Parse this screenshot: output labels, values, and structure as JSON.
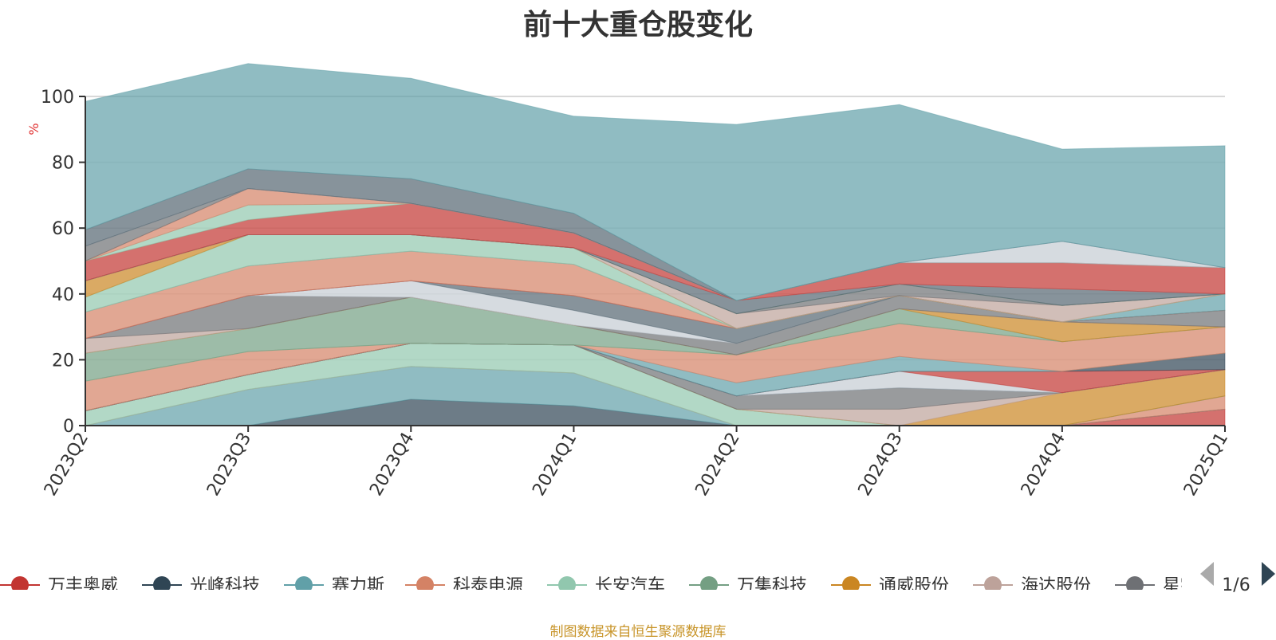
{
  "title": "前十大重仓股变化",
  "source_note": "制图数据来自恒生聚源数据库",
  "legend_page": "1/6",
  "chart_data": {
    "type": "area",
    "title": "前十大重仓股变化",
    "ylabel": "%",
    "ylim": [
      0,
      100
    ],
    "yticks": [
      0,
      20,
      40,
      60,
      80,
      100
    ],
    "grid": true,
    "legend_position": "bottom",
    "categories": [
      "2023Q2",
      "2023Q3",
      "2023Q4",
      "2024Q1",
      "2024Q2",
      "2024Q3",
      "2024Q4",
      "2025Q1"
    ],
    "series": [
      {
        "name": "万丰奥威",
        "color": "#c23531",
        "values": [
          0,
          0,
          0,
          0,
          0,
          0,
          0,
          5
        ]
      },
      {
        "name": "光峰科技",
        "color": "#2f4554",
        "values": [
          0,
          0,
          8,
          6,
          0,
          0,
          0,
          0
        ]
      },
      {
        "name": "赛力斯",
        "color": "#61a0a8",
        "values": [
          0,
          11,
          10,
          10,
          0,
          0,
          0,
          0
        ]
      },
      {
        "name": "科泰电源",
        "color": "#d48265",
        "values": [
          0,
          0,
          0,
          0,
          0,
          0,
          0,
          4
        ]
      },
      {
        "name": "长安汽车",
        "color": "#91c7ae",
        "values": [
          4.5,
          4.5,
          7,
          8.5,
          5,
          0,
          0,
          0
        ]
      },
      {
        "name": "万集科技",
        "color": "#749f83",
        "values": [
          0,
          0,
          0,
          0,
          0,
          0,
          0,
          0
        ]
      },
      {
        "name": "通威股份",
        "color": "#ca8622",
        "values": [
          0,
          0,
          0,
          0,
          0,
          0,
          10,
          8
        ]
      },
      {
        "name": "海达股份",
        "color": "#bda29a",
        "values": [
          0,
          0,
          0,
          0,
          0,
          5,
          0,
          0
        ]
      },
      {
        "name": "星宇股份",
        "color": "#6e7074",
        "values": [
          0,
          0,
          0,
          0,
          4,
          6.5,
          0,
          0
        ]
      },
      {
        "name": "",
        "color": "#546570",
        "values": [
          0,
          0,
          0,
          0,
          0,
          0,
          0,
          0
        ]
      },
      {
        "name": "",
        "color": "#c4ccd3",
        "values": [
          0,
          0,
          0,
          0,
          0,
          5,
          0,
          0
        ]
      },
      {
        "name": "",
        "color": "#c23531",
        "values": [
          0,
          0,
          0,
          0,
          0,
          0,
          6.5,
          0
        ]
      },
      {
        "name": "",
        "color": "#2f4554",
        "values": [
          0,
          0,
          0,
          0,
          0,
          0,
          0,
          5
        ]
      },
      {
        "name": "",
        "color": "#61a0a8",
        "values": [
          0,
          0,
          0,
          0,
          4,
          4.5,
          0,
          0
        ]
      },
      {
        "name": "",
        "color": "#d48265",
        "values": [
          9,
          7,
          0,
          0,
          8.5,
          10,
          9,
          8
        ]
      },
      {
        "name": "",
        "color": "#91c7ae",
        "values": [
          0,
          0,
          0,
          0,
          0,
          0,
          0,
          0
        ]
      },
      {
        "name": "",
        "color": "#749f83",
        "values": [
          8.5,
          7,
          14,
          6,
          0,
          4.5,
          0,
          0
        ]
      },
      {
        "name": "",
        "color": "#ca8622",
        "values": [
          0,
          0,
          0,
          0,
          0,
          0,
          6,
          0
        ]
      },
      {
        "name": "",
        "color": "#bda29a",
        "values": [
          4.5,
          0,
          0,
          0,
          0,
          0,
          0,
          0
        ]
      },
      {
        "name": "",
        "color": "#6e7074",
        "values": [
          0,
          10,
          0,
          0,
          3.5,
          4,
          0,
          5
        ]
      },
      {
        "name": "",
        "color": "#c4ccd3",
        "values": [
          0,
          0,
          5,
          4.5,
          0,
          0,
          0,
          0
        ]
      },
      {
        "name": "",
        "color": "#546570",
        "values": [
          0,
          0,
          0,
          4.5,
          4.5,
          0,
          0,
          0
        ]
      },
      {
        "name": "",
        "color": "#c23531",
        "values": [
          0,
          0,
          0,
          0,
          0,
          0,
          0,
          0
        ]
      },
      {
        "name": "",
        "color": "#d48265",
        "values": [
          8,
          9,
          9,
          9.5,
          0,
          0,
          0,
          0
        ]
      },
      {
        "name": "",
        "color": "#61a0a8",
        "values": [
          0,
          0,
          0,
          0,
          0,
          0,
          0,
          5
        ]
      },
      {
        "name": "",
        "color": "#91c7ae",
        "values": [
          4.5,
          9.5,
          5,
          5,
          0,
          0,
          0,
          0
        ]
      },
      {
        "name": "",
        "color": "#ca8622",
        "values": [
          5,
          0,
          0,
          0,
          0,
          0,
          0,
          0
        ]
      },
      {
        "name": "",
        "color": "#bda29a",
        "values": [
          0,
          0,
          0,
          0,
          4.5,
          0,
          5,
          0
        ]
      },
      {
        "name": "",
        "color": "#6e7074",
        "values": [
          0,
          0,
          0,
          0,
          0,
          3.5,
          0,
          0
        ]
      },
      {
        "name": "",
        "color": "#749f83",
        "values": [
          0,
          0,
          0,
          0,
          0,
          0,
          0,
          0
        ]
      },
      {
        "name": "",
        "color": "#546570",
        "values": [
          0,
          0,
          0,
          0,
          4,
          0,
          5,
          0
        ]
      },
      {
        "name": "",
        "color": "#c4ccd3",
        "values": [
          0,
          0,
          0,
          0,
          0,
          0,
          0,
          0
        ]
      },
      {
        "name": "",
        "color": "#c23531",
        "values": [
          6,
          4.5,
          9.5,
          4.5,
          0,
          6.5,
          8,
          8
        ]
      },
      {
        "name": "",
        "color": "#91c7ae",
        "values": [
          0,
          4.5,
          0,
          0,
          0,
          0,
          0,
          0
        ]
      },
      {
        "name": "",
        "color": "#d48265",
        "values": [
          0,
          5,
          0,
          0,
          0,
          0,
          0,
          0
        ]
      },
      {
        "name": "",
        "color": "#6e7074",
        "values": [
          4.5,
          0,
          0,
          0,
          0,
          0,
          0,
          0
        ]
      },
      {
        "name": "",
        "color": "#c4ccd3",
        "values": [
          0,
          0,
          0,
          0,
          0,
          0,
          6.5,
          0
        ]
      },
      {
        "name": "",
        "color": "#546570",
        "values": [
          5,
          6,
          7.5,
          6,
          0,
          0,
          0,
          0
        ]
      },
      {
        "name": "",
        "color": "#61a0a8",
        "values": [
          39,
          32,
          30.5,
          29.5,
          53.5,
          48,
          28,
          37
        ]
      }
    ]
  }
}
